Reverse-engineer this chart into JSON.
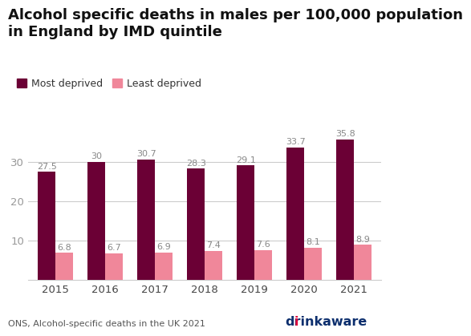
{
  "title_line1": "Alcohol specific deaths in males per 100,000 population",
  "title_line2": "in England by IMD quintile",
  "years": [
    2015,
    2016,
    2017,
    2018,
    2019,
    2020,
    2021
  ],
  "most_deprived": [
    27.5,
    30.0,
    30.7,
    28.3,
    29.1,
    33.7,
    35.8
  ],
  "least_deprived": [
    6.8,
    6.7,
    6.9,
    7.4,
    7.6,
    8.1,
    8.9
  ],
  "color_most": "#6B0035",
  "color_least": "#F0879A",
  "legend_most": "Most deprived",
  "legend_least": "Least deprived",
  "yticks": [
    10,
    20,
    30
  ],
  "label_fontsize": 8.0,
  "tick_fontsize": 9.5,
  "bar_width": 0.35,
  "background_color": "#ffffff",
  "grid_color": "#cccccc",
  "footnote": "ONS, Alcohol-specific deaths in the UK 2021",
  "footnote_fontsize": 8.0,
  "title_fontsize": 13.0,
  "legend_fontsize": 9.0,
  "drinkaware_color_blue": "#0d2f6e",
  "drinkaware_color_red": "#e0003c"
}
